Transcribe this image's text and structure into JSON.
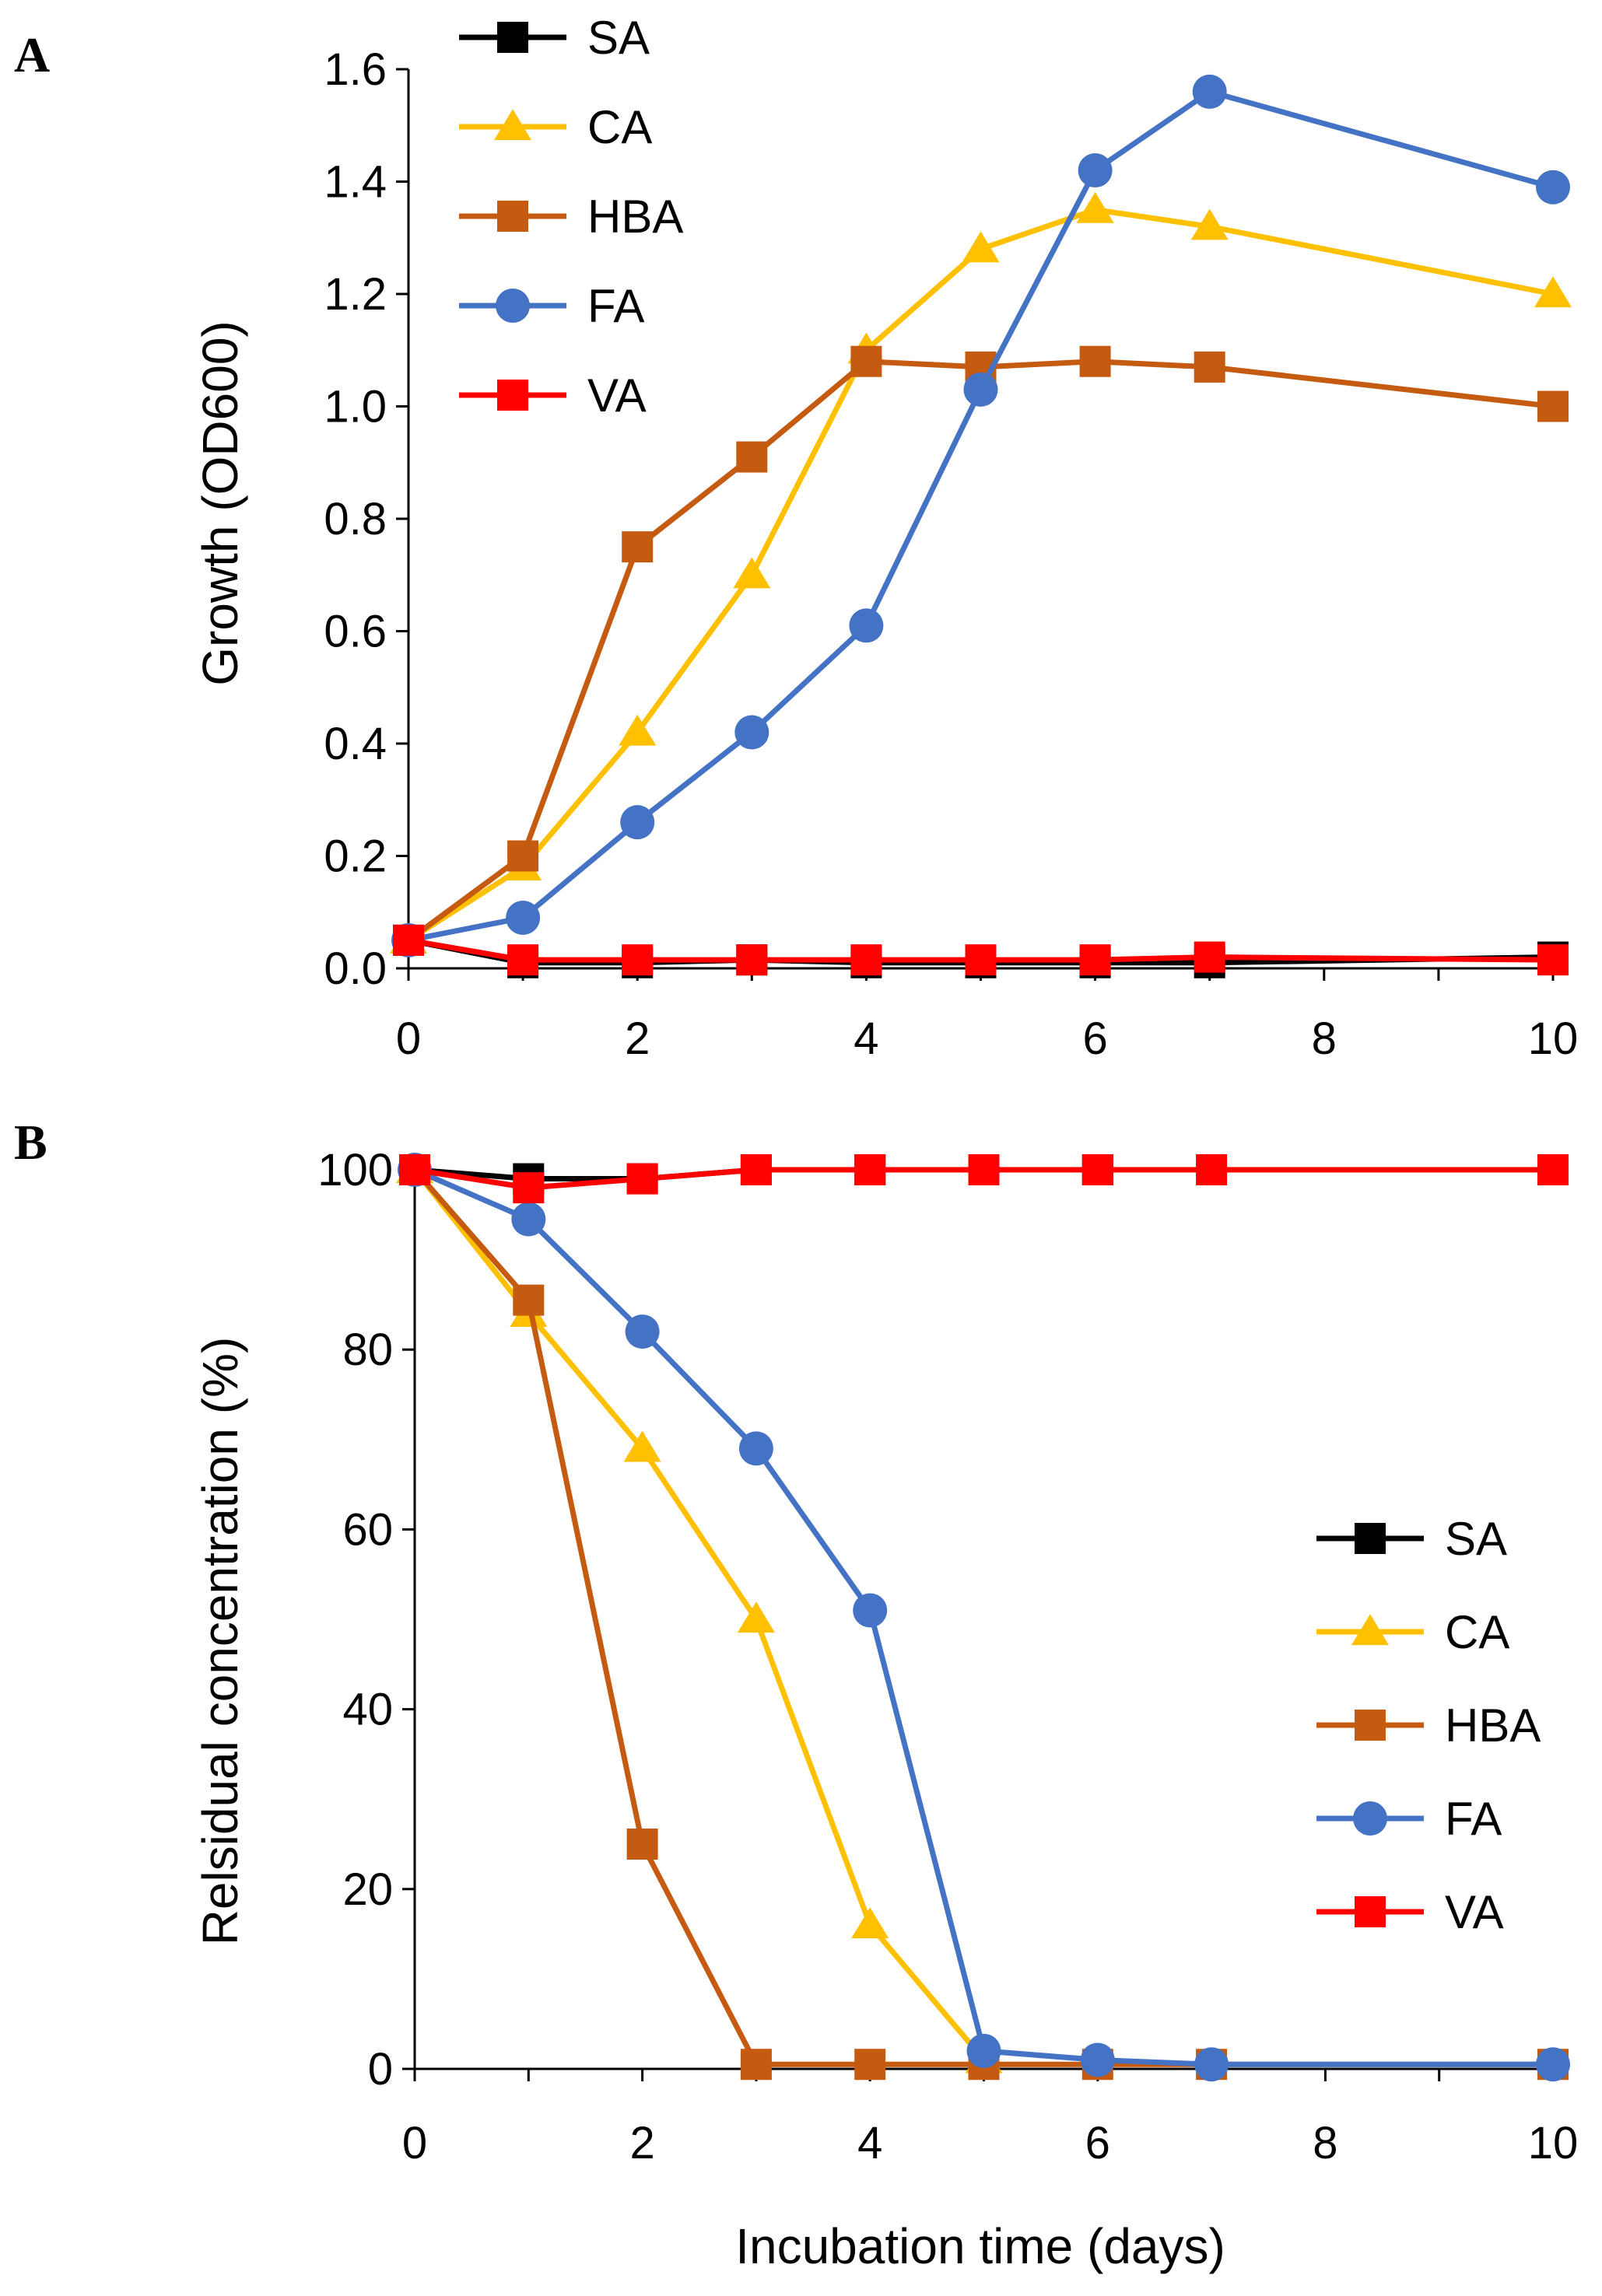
{
  "figure": {
    "x_axis_title": "Incubation time (days)"
  },
  "chart_data": [
    {
      "type": "line",
      "panel_label": "A",
      "title": "",
      "xlabel": "",
      "ylabel": "Growth (OD600)",
      "xlim": [
        0,
        10
      ],
      "ylim": [
        0,
        1.6
      ],
      "x_ticks": [
        0,
        2,
        4,
        6,
        8,
        10
      ],
      "x_tick_labels": [
        "0",
        "2",
        "4",
        "6",
        "8",
        "10"
      ],
      "y_ticks": [
        0,
        0.2,
        0.4,
        0.6,
        0.8,
        1.0,
        1.2,
        1.4,
        1.6
      ],
      "y_tick_labels": [
        "0.0",
        "0.2",
        "0.4",
        "0.6",
        "0.8",
        "1.0",
        "1.2",
        "1.4",
        "1.6"
      ],
      "grid": false,
      "legend_position": "top-left",
      "x": [
        0,
        1,
        2,
        3,
        4,
        5,
        6,
        7,
        10
      ],
      "series": [
        {
          "name": "SA",
          "color": "#000000",
          "marker": "square",
          "values": [
            0.05,
            0.01,
            0.01,
            0.015,
            0.01,
            0.01,
            0.01,
            0.01,
            0.02
          ]
        },
        {
          "name": "CA",
          "color": "#FFC000",
          "marker": "triangle",
          "values": [
            0.05,
            0.18,
            0.42,
            0.7,
            1.1,
            1.28,
            1.35,
            1.32,
            1.2
          ]
        },
        {
          "name": "HBA",
          "color": "#C55A11",
          "marker": "square",
          "values": [
            0.05,
            0.2,
            0.75,
            0.91,
            1.08,
            1.07,
            1.08,
            1.07,
            1.0
          ]
        },
        {
          "name": "FA",
          "color": "#4472C4",
          "marker": "circle",
          "values": [
            0.05,
            0.09,
            0.26,
            0.42,
            0.61,
            1.03,
            1.42,
            1.56,
            1.39
          ]
        },
        {
          "name": "VA",
          "color": "#FF0000",
          "marker": "square",
          "values": [
            0.05,
            0.015,
            0.015,
            0.015,
            0.015,
            0.015,
            0.015,
            0.02,
            0.015
          ]
        }
      ]
    },
    {
      "type": "line",
      "panel_label": "B",
      "title": "",
      "xlabel": "Incubation time (days)",
      "ylabel": "Relsidual concentration (%)",
      "xlim": [
        0,
        10
      ],
      "ylim": [
        0,
        100
      ],
      "x_ticks": [
        0,
        2,
        4,
        6,
        8,
        10
      ],
      "x_tick_labels": [
        "0",
        "2",
        "4",
        "6",
        "8",
        "10"
      ],
      "y_ticks": [
        0,
        20,
        40,
        60,
        80,
        100
      ],
      "y_tick_labels": [
        "0",
        "20",
        "40",
        "60",
        "80",
        "100"
      ],
      "grid": false,
      "legend_position": "right",
      "series": [
        {
          "name": "SA",
          "color": "#000000",
          "marker": "square",
          "x": [
            0,
            1,
            2,
            3,
            4,
            5,
            6
          ],
          "values": [
            100,
            99,
            99,
            100,
            100,
            100,
            100
          ]
        },
        {
          "name": "CA",
          "color": "#FFC000",
          "marker": "triangle",
          "x": [
            0,
            1,
            2,
            3,
            4,
            5
          ],
          "values": [
            100,
            84,
            69,
            50,
            16,
            1
          ]
        },
        {
          "name": "HBA",
          "color": "#C55A11",
          "marker": "square",
          "x": [
            0,
            1,
            2,
            3,
            4,
            5,
            6,
            7,
            10
          ],
          "values": [
            100,
            85.5,
            25,
            0.5,
            0.5,
            0.5,
            0.5,
            0.5,
            0.5
          ]
        },
        {
          "name": "FA",
          "color": "#4472C4",
          "marker": "circle",
          "x": [
            0,
            1,
            2,
            3,
            4,
            5,
            6,
            7,
            10
          ],
          "values": [
            100,
            94.5,
            82,
            69,
            51,
            2,
            1,
            0.5,
            0.5
          ]
        },
        {
          "name": "VA",
          "color": "#FF0000",
          "marker": "square",
          "x": [
            0,
            1,
            2,
            3,
            4,
            5,
            6,
            7,
            10
          ],
          "values": [
            100,
            98,
            99,
            100,
            100,
            100,
            100,
            100,
            100
          ]
        }
      ]
    }
  ]
}
